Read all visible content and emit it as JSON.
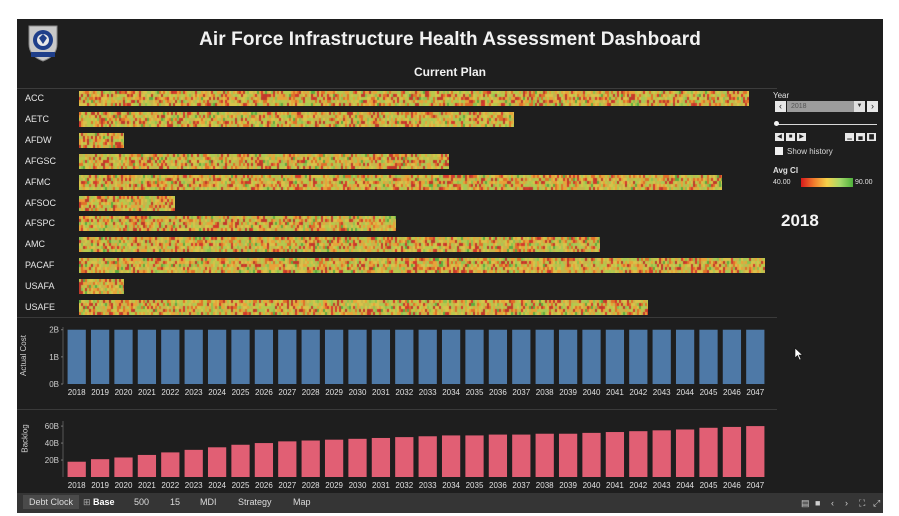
{
  "header": {
    "title": "Air Force Infrastructure Health Assessment Dashboard",
    "subtitle": "Current Plan",
    "logo_icon": "air-force-shield-logo"
  },
  "commands": [
    {
      "name": "ACC",
      "bar_fraction": 0.977
    },
    {
      "name": "AETC",
      "bar_fraction": 0.634
    },
    {
      "name": "AFDW",
      "bar_fraction": 0.066
    },
    {
      "name": "AFGSC",
      "bar_fraction": 0.54
    },
    {
      "name": "AFMC",
      "bar_fraction": 0.937
    },
    {
      "name": "AFSOC",
      "bar_fraction": 0.14
    },
    {
      "name": "AFSPC",
      "bar_fraction": 0.462
    },
    {
      "name": "AMC",
      "bar_fraction": 0.76
    },
    {
      "name": "PACAF",
      "bar_fraction": 1.0
    },
    {
      "name": "USAFA",
      "bar_fraction": 0.066
    },
    {
      "name": "USAFE",
      "bar_fraction": 0.83
    }
  ],
  "heatmap_colors": [
    "#c0392b",
    "#e0702a",
    "#e8a33a",
    "#d9c24a",
    "#b8c94c",
    "#8fc24f",
    "#5faa3e",
    "#d33a2c",
    "#c7b64a",
    "#a9c855"
  ],
  "controls": {
    "year_label": "Year",
    "year_value": "2018",
    "show_history_label": "Show history",
    "avg_ci_label": "Avg CI",
    "legend_min": "40.00",
    "legend_max": "90.00",
    "current_year_display": "2018"
  },
  "chart_data": [
    {
      "type": "bar",
      "title": "",
      "ylabel": "Actual Cost",
      "categories": [
        "2018",
        "2019",
        "2020",
        "2021",
        "2022",
        "2023",
        "2024",
        "2025",
        "2026",
        "2027",
        "2028",
        "2029",
        "2030",
        "2031",
        "2032",
        "2033",
        "2034",
        "2035",
        "2036",
        "2037",
        "2038",
        "2039",
        "2040",
        "2041",
        "2042",
        "2043",
        "2044",
        "2045",
        "2046",
        "2047"
      ],
      "values": [
        2.0,
        2.0,
        2.0,
        2.0,
        2.0,
        2.0,
        2.0,
        2.0,
        2.0,
        2.0,
        2.0,
        2.0,
        2.0,
        2.0,
        2.0,
        2.0,
        2.0,
        2.0,
        2.0,
        2.0,
        2.0,
        2.0,
        2.0,
        2.0,
        2.0,
        2.0,
        2.0,
        2.0,
        2.0,
        2.0
      ],
      "yticks": [
        "0B",
        "1B",
        "2B"
      ],
      "ylim": [
        0,
        2.1
      ],
      "color": "#4e79a7",
      "grid": false
    },
    {
      "type": "bar",
      "title": "",
      "ylabel": "Backlog",
      "categories": [
        "2018",
        "2019",
        "2020",
        "2021",
        "2022",
        "2023",
        "2024",
        "2025",
        "2026",
        "2027",
        "2028",
        "2029",
        "2030",
        "2031",
        "2032",
        "2033",
        "2034",
        "2035",
        "2036",
        "2037",
        "2038",
        "2039",
        "2040",
        "2041",
        "2042",
        "2043",
        "2044",
        "2045",
        "2046",
        "2047"
      ],
      "values": [
        18,
        21,
        23,
        26,
        29,
        32,
        35,
        38,
        40,
        42,
        43,
        44,
        45,
        46,
        47,
        48,
        49,
        49,
        50,
        50,
        51,
        51,
        52,
        53,
        54,
        55,
        56,
        58,
        59,
        60
      ],
      "yticks": [
        "20B",
        "40B",
        "60B"
      ],
      "ylim": [
        0,
        66
      ],
      "color": "#e15f74",
      "grid": false
    }
  ],
  "tabs": [
    {
      "label": "Debt Clock",
      "active": false
    },
    {
      "label": "Base",
      "active": true
    },
    {
      "label": "500",
      "active": false
    },
    {
      "label": "15",
      "active": false
    },
    {
      "label": "MDI",
      "active": false
    },
    {
      "label": "Strategy",
      "active": false
    },
    {
      "label": "Map",
      "active": false
    }
  ]
}
